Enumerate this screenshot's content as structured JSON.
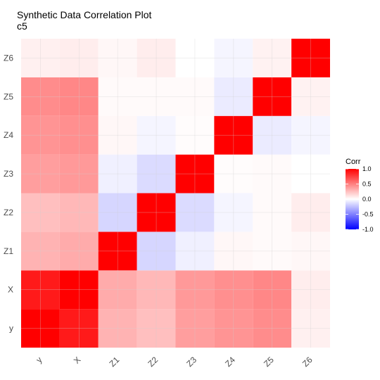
{
  "chart_data": {
    "type": "heatmap",
    "title": "Synthetic Data Correlation Plot",
    "subtitle": "c5",
    "x_categories": [
      "y",
      "X",
      "Z1",
      "Z2",
      "Z3",
      "Z4",
      "Z5",
      "Z6"
    ],
    "y_categories": [
      "y",
      "X",
      "Z1",
      "Z2",
      "Z3",
      "Z4",
      "Z5",
      "Z6"
    ],
    "matrix": [
      [
        1.0,
        0.9,
        0.3,
        0.25,
        0.38,
        0.42,
        0.45,
        0.06
      ],
      [
        0.9,
        1.0,
        0.33,
        0.28,
        0.4,
        0.44,
        0.47,
        0.07
      ],
      [
        0.3,
        0.33,
        1.0,
        -0.16,
        -0.06,
        0.03,
        0.02,
        0.03
      ],
      [
        0.25,
        0.28,
        -0.16,
        1.0,
        -0.14,
        -0.04,
        0.02,
        0.07
      ],
      [
        0.38,
        0.4,
        -0.06,
        -0.14,
        1.0,
        0.01,
        0.02,
        0.0
      ],
      [
        0.42,
        0.44,
        0.03,
        -0.04,
        0.01,
        1.0,
        -0.08,
        -0.04
      ],
      [
        0.45,
        0.47,
        0.02,
        0.02,
        0.02,
        -0.08,
        1.0,
        0.05
      ],
      [
        0.06,
        0.07,
        0.03,
        0.07,
        0.0,
        -0.04,
        0.05,
        1.0
      ]
    ],
    "legend": {
      "title": "Corr",
      "ticks": [
        1.0,
        0.5,
        0.0,
        -0.5,
        -1.0
      ],
      "tick_labels": [
        "1.0",
        "0.5",
        "0.0",
        "-0.5",
        "-1.0"
      ],
      "range": [
        -1,
        1
      ],
      "position": "right"
    },
    "colors": {
      "low": "#0000ff",
      "mid": "#ffffff",
      "high": "#ff0000"
    },
    "grid": true
  }
}
